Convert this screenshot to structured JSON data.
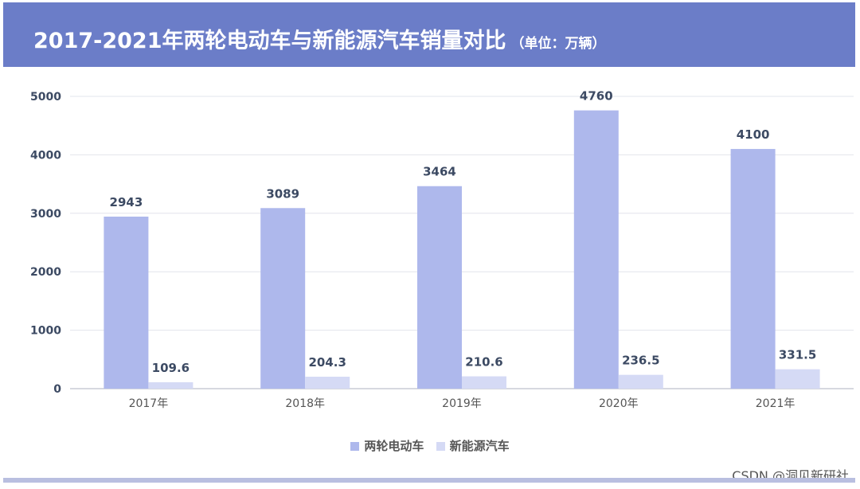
{
  "header": {
    "title": "2017-2021年两轮电动车与新能源汽车销量对比",
    "unit": "（单位：万辆）"
  },
  "chart_data": {
    "type": "bar",
    "categories": [
      "2017年",
      "2018年",
      "2019年",
      "2020年",
      "2021年"
    ],
    "series": [
      {
        "name": "两轮电动车",
        "values": [
          2943,
          3089,
          3464,
          4760,
          4100
        ],
        "labels": [
          "2943",
          "3089",
          "3464",
          "4760",
          "4100"
        ],
        "color": "#aeb8ec"
      },
      {
        "name": "新能源汽车",
        "values": [
          109.6,
          204.3,
          210.6,
          236.5,
          331.5
        ],
        "labels": [
          "109.6",
          "204.3",
          "210.6",
          "236.5",
          "331.5"
        ],
        "color": "#d5daf5"
      }
    ],
    "ylim": [
      0,
      5000
    ],
    "yticks": [
      "0",
      "1000",
      "2000",
      "3000",
      "4000",
      "5000"
    ],
    "grid": true,
    "legend": "bottom"
  },
  "colors": {
    "header_bg": "#6b7dc8",
    "grid": "#e2e4ec",
    "axis": "#c8cbd6"
  },
  "watermark": "CSDN @洞见新研社"
}
